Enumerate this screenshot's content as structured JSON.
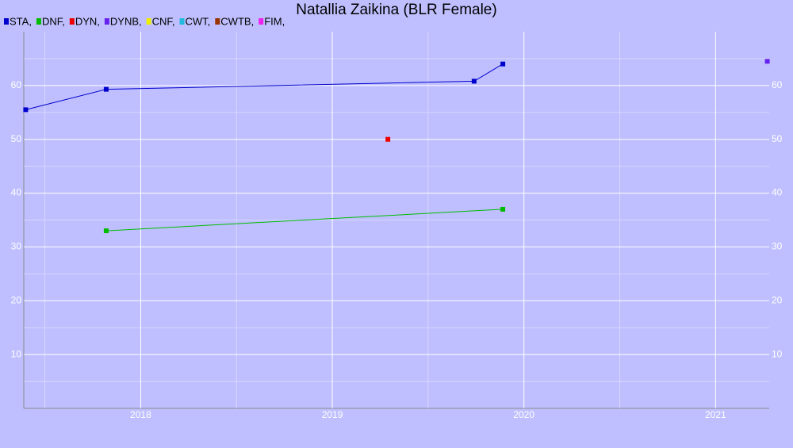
{
  "chart_data": {
    "type": "line",
    "title": "Natallia Zaikina (BLR Female)",
    "xlim": [
      2017.39,
      2021.28
    ],
    "xticks": [
      2018,
      2019,
      2020,
      2021
    ],
    "x_minor_ticks": [
      2017.5,
      2018.5,
      2019.5,
      2020.5
    ],
    "ylim": [
      0,
      70
    ],
    "yticks": [
      10,
      20,
      30,
      40,
      50,
      60
    ],
    "y_minor_ticks": [
      5,
      15,
      25,
      35,
      45,
      55,
      65
    ],
    "grid": true,
    "series": [
      {
        "name": "STA,",
        "color": "#0000cc",
        "x": [
          2017.4,
          2017.82,
          2019.74,
          2019.89
        ],
        "values": [
          55.5,
          59.3,
          60.8,
          64.0
        ]
      },
      {
        "name": "DNF,",
        "color": "#00bb00",
        "x": [
          2017.82,
          2019.89
        ],
        "values": [
          33,
          37
        ]
      },
      {
        "name": "DYN,",
        "color": "#ee0000",
        "x": [
          2019.29
        ],
        "values": [
          50
        ]
      },
      {
        "name": "DYNB,",
        "color": "#6622ee",
        "x": [
          2021.27
        ],
        "values": [
          64.5
        ]
      },
      {
        "name": "CNF,",
        "color": "#eeee00",
        "x": [],
        "values": []
      },
      {
        "name": "CWT,",
        "color": "#22bbdd",
        "x": [],
        "values": []
      },
      {
        "name": "CWTB,",
        "color": "#993300",
        "x": [],
        "values": []
      },
      {
        "name": "FIM,",
        "color": "#ee22ee",
        "x": [],
        "values": []
      }
    ]
  }
}
